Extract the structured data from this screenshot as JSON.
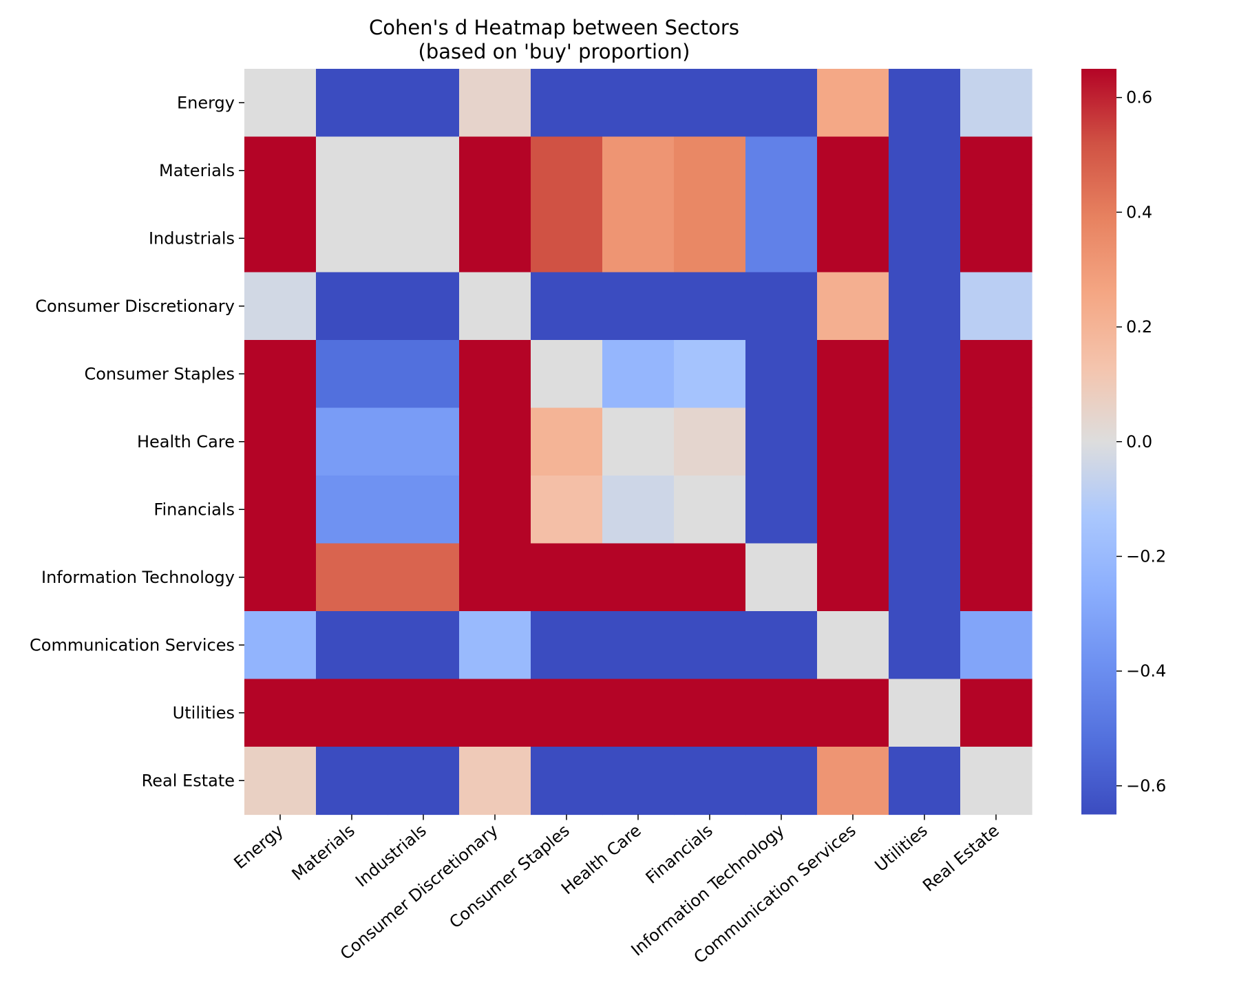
{
  "chart_data": {
    "type": "heatmap",
    "title": "Cohen's d Heatmap between Sectors",
    "subtitle": "(based on 'buy' proportion)",
    "xlabel": "",
    "ylabel": "",
    "rows": [
      "Energy",
      "Materials",
      "Industrials",
      "Consumer Discretionary",
      "Consumer Staples",
      "Health Care",
      "Financials",
      "Information Technology",
      "Communication Services",
      "Utilities",
      "Real Estate"
    ],
    "columns": [
      "Energy",
      "Materials",
      "Industrials",
      "Consumer Discretionary",
      "Consumer Staples",
      "Health Care",
      "Financials",
      "Information Technology",
      "Communication Services",
      "Utilities",
      "Real Estate"
    ],
    "values": [
      [
        0.0,
        -0.65,
        -0.65,
        0.05,
        -0.65,
        -0.65,
        -0.65,
        -0.65,
        0.25,
        -0.65,
        -0.06
      ],
      [
        0.65,
        0.0,
        0.0,
        0.65,
        0.52,
        0.32,
        0.37,
        -0.45,
        0.65,
        -0.65,
        0.65
      ],
      [
        0.65,
        0.0,
        0.0,
        0.65,
        0.52,
        0.32,
        0.37,
        -0.45,
        0.65,
        -0.65,
        0.65
      ],
      [
        -0.03,
        -0.65,
        -0.65,
        0.0,
        -0.65,
        -0.65,
        -0.65,
        -0.65,
        0.22,
        -0.65,
        -0.09
      ],
      [
        0.65,
        -0.52,
        -0.52,
        0.65,
        0.0,
        -0.22,
        -0.15,
        -0.65,
        0.65,
        -0.65,
        0.65
      ],
      [
        0.65,
        -0.34,
        -0.34,
        0.65,
        0.2,
        0.0,
        0.04,
        -0.65,
        0.65,
        -0.65,
        0.65
      ],
      [
        0.65,
        -0.38,
        -0.38,
        0.65,
        0.15,
        -0.04,
        0.0,
        -0.65,
        0.65,
        -0.65,
        0.65
      ],
      [
        0.65,
        0.47,
        0.47,
        0.65,
        0.65,
        0.65,
        0.65,
        0.0,
        0.65,
        -0.65,
        0.65
      ],
      [
        -0.23,
        -0.65,
        -0.65,
        -0.2,
        -0.65,
        -0.65,
        -0.65,
        -0.65,
        0.0,
        -0.65,
        -0.3
      ],
      [
        0.65,
        0.65,
        0.65,
        0.65,
        0.65,
        0.65,
        0.65,
        0.65,
        0.65,
        0.0,
        0.65
      ],
      [
        0.07,
        -0.65,
        -0.65,
        0.1,
        -0.65,
        -0.65,
        -0.65,
        -0.65,
        0.32,
        -0.65,
        0.0
      ]
    ],
    "colormap": "coolwarm",
    "vmin": -0.65,
    "vmax": 0.65,
    "colorbar_ticks": [
      0.6,
      0.4,
      0.2,
      0.0,
      -0.2,
      -0.4,
      -0.6
    ],
    "colorbar_tick_labels": [
      "0.6",
      "0.4",
      "0.2",
      "0.0",
      "−0.2",
      "−0.4",
      "−0.6"
    ],
    "grid": false,
    "legend": "colorbar-right"
  }
}
